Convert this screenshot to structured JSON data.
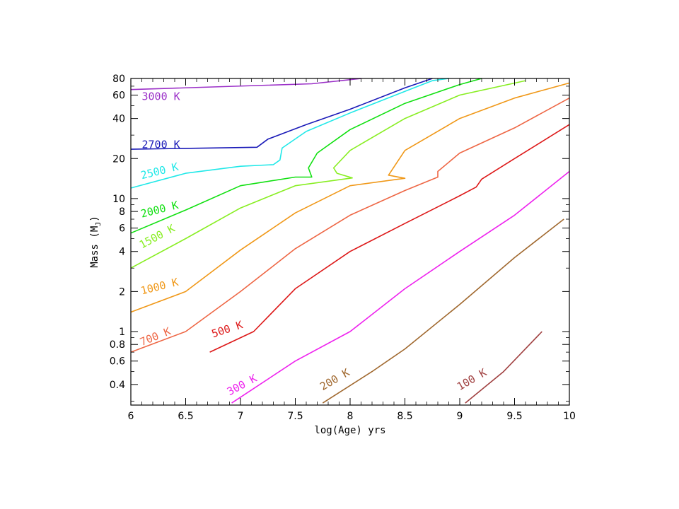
{
  "chart_data": {
    "type": "line",
    "xlabel": "log(Age) yrs",
    "ylabel_main": "Mass (M",
    "ylabel_sub": "J",
    "ylabel_end": ")",
    "xlim": [
      6,
      10
    ],
    "ylim": [
      0.28,
      80
    ],
    "y_scale": "log",
    "x_ticks": [
      {
        "v": 6,
        "label": "6"
      },
      {
        "v": 6.5,
        "label": "6.5"
      },
      {
        "v": 7,
        "label": "7"
      },
      {
        "v": 7.5,
        "label": "7.5"
      },
      {
        "v": 8,
        "label": "8"
      },
      {
        "v": 8.5,
        "label": "8.5"
      },
      {
        "v": 9,
        "label": "9"
      },
      {
        "v": 9.5,
        "label": "9.5"
      },
      {
        "v": 10,
        "label": "10"
      }
    ],
    "y_ticks": [
      {
        "v": 0.4,
        "label": "0.4"
      },
      {
        "v": 0.6,
        "label": "0.6"
      },
      {
        "v": 0.8,
        "label": "0.8"
      },
      {
        "v": 1,
        "label": "1"
      },
      {
        "v": 2,
        "label": "2"
      },
      {
        "v": 4,
        "label": "4"
      },
      {
        "v": 6,
        "label": "6"
      },
      {
        "v": 8,
        "label": "8"
      },
      {
        "v": 10,
        "label": "10"
      },
      {
        "v": 20,
        "label": "20"
      },
      {
        "v": 40,
        "label": "40"
      },
      {
        "v": 60,
        "label": "60"
      },
      {
        "v": 80,
        "label": "80"
      }
    ],
    "series": [
      {
        "name": "3000 K",
        "color": "#9b30c8",
        "label_pos": [
          6.1,
          55
        ],
        "label_angle": 0,
        "points": [
          [
            6,
            66
          ],
          [
            7.65,
            73
          ],
          [
            8.1,
            80
          ]
        ]
      },
      {
        "name": "2700 K",
        "color": "#1a1ab8",
        "label_pos": [
          6.1,
          24
        ],
        "label_angle": 0,
        "points": [
          [
            6,
            23.5
          ],
          [
            7.15,
            24.3
          ],
          [
            7.25,
            28
          ],
          [
            7.6,
            36
          ],
          [
            8,
            47
          ],
          [
            8.5,
            68
          ],
          [
            8.75,
            80
          ]
        ]
      },
      {
        "name": "2500 K",
        "color": "#20e8e8",
        "label_pos": [
          6.1,
          14
        ],
        "label_angle": -14,
        "points": [
          [
            6,
            12
          ],
          [
            6.5,
            15.5
          ],
          [
            7,
            17.5
          ],
          [
            7.3,
            18
          ],
          [
            7.36,
            19.5
          ],
          [
            7.38,
            24
          ],
          [
            7.6,
            32
          ],
          [
            8,
            44
          ],
          [
            8.5,
            64
          ],
          [
            8.75,
            77
          ],
          [
            8.9,
            80
          ]
        ]
      },
      {
        "name": "2000 K",
        "color": "#10e010",
        "label_pos": [
          6.1,
          7.2
        ],
        "label_angle": -14,
        "points": [
          [
            6,
            5.5
          ],
          [
            6.5,
            8.2
          ],
          [
            7,
            12.5
          ],
          [
            7.5,
            14.5
          ],
          [
            7.65,
            14.5
          ],
          [
            7.62,
            17
          ],
          [
            7.7,
            22
          ],
          [
            8,
            33
          ],
          [
            8.5,
            52
          ],
          [
            9,
            72
          ],
          [
            9.2,
            80
          ]
        ]
      },
      {
        "name": "1500 K",
        "color": "#88ee22",
        "label_pos": [
          6.1,
          4.2
        ],
        "label_angle": -28,
        "points": [
          [
            6,
            3
          ],
          [
            6.5,
            5
          ],
          [
            7,
            8.5
          ],
          [
            7.5,
            12.5
          ],
          [
            8.02,
            14.3
          ],
          [
            7.88,
            15.5
          ],
          [
            7.85,
            17
          ],
          [
            8,
            23
          ],
          [
            8.5,
            40
          ],
          [
            9,
            60
          ],
          [
            9.6,
            77
          ]
        ]
      },
      {
        "name": "1000 K",
        "color": "#f09818",
        "label_pos": [
          6.1,
          1.9
        ],
        "label_angle": -14,
        "points": [
          [
            6,
            1.4
          ],
          [
            6.5,
            2.0
          ],
          [
            7,
            4.1
          ],
          [
            7.5,
            7.8
          ],
          [
            8,
            12.5
          ],
          [
            8.5,
            14.2
          ],
          [
            8.35,
            15
          ],
          [
            8.5,
            23
          ],
          [
            9,
            40
          ],
          [
            9.5,
            57
          ],
          [
            10,
            74
          ]
        ]
      },
      {
        "name": "700 K",
        "color": "#ee6644",
        "label_pos": [
          6.1,
          0.78
        ],
        "label_angle": -22,
        "points": [
          [
            6,
            0.7
          ],
          [
            6.5,
            1.0
          ],
          [
            7,
            2.0
          ],
          [
            7.5,
            4.2
          ],
          [
            8,
            7.5
          ],
          [
            8.5,
            11.5
          ],
          [
            8.8,
            14.5
          ],
          [
            8.8,
            16
          ],
          [
            9,
            22
          ],
          [
            9.5,
            34
          ],
          [
            10,
            57
          ]
        ]
      },
      {
        "name": "500 K",
        "color": "#dd1818",
        "label_pos": [
          6.75,
          0.9
        ],
        "label_angle": -18,
        "points": [
          [
            6.72,
            0.7
          ],
          [
            7.12,
            1.0
          ],
          [
            7.5,
            2.1
          ],
          [
            8,
            4.0
          ],
          [
            8.5,
            6.5
          ],
          [
            9,
            10.5
          ],
          [
            9.15,
            12.2
          ],
          [
            9.2,
            14
          ],
          [
            9.5,
            20
          ],
          [
            10,
            36
          ]
        ]
      },
      {
        "name": "300 K",
        "color": "#ee22ee",
        "label_pos": [
          6.9,
          0.33
        ],
        "label_angle": -28,
        "points": [
          [
            6.92,
            0.29
          ],
          [
            7.5,
            0.6
          ],
          [
            8,
            1.0
          ],
          [
            8.5,
            2.1
          ],
          [
            9,
            4.0
          ],
          [
            9.5,
            7.5
          ],
          [
            10,
            16
          ]
        ]
      },
      {
        "name": "200 K",
        "color": "#a0682e",
        "label_pos": [
          7.75,
          0.36
        ],
        "label_angle": -30,
        "points": [
          [
            7.75,
            0.29
          ],
          [
            8.2,
            0.5
          ],
          [
            8.5,
            0.74
          ],
          [
            9,
            1.6
          ],
          [
            9.5,
            3.6
          ],
          [
            9.95,
            7
          ]
        ]
      },
      {
        "name": "100 K",
        "color": "#a04040",
        "label_pos": [
          9.0,
          0.36
        ],
        "label_angle": -30,
        "points": [
          [
            9.05,
            0.29
          ],
          [
            9.4,
            0.5
          ],
          [
            9.75,
            1.0
          ]
        ]
      }
    ]
  }
}
